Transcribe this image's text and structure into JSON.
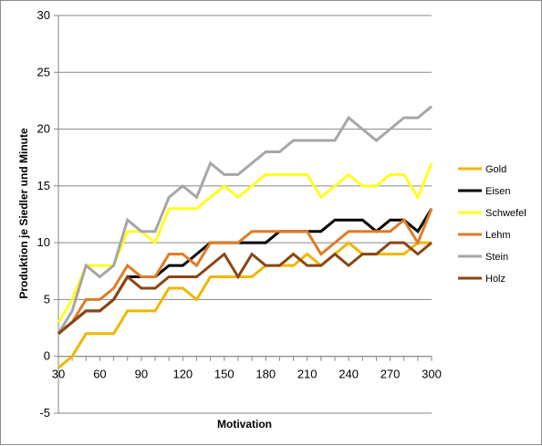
{
  "chart_data": {
    "type": "line",
    "title": "",
    "xlabel": "Motivation",
    "ylabel": "Produktion je Siedler und Minute",
    "xlim": [
      30,
      300
    ],
    "ylim": [
      -5,
      30
    ],
    "x_ticks": [
      "30",
      "60",
      "90",
      "120",
      "150",
      "180",
      "210",
      "240",
      "270",
      "300"
    ],
    "y_ticks": [
      "-5",
      "0",
      "5",
      "10",
      "15",
      "20",
      "25",
      "30"
    ],
    "grid": "horizontal",
    "legend_position": "right",
    "x": [
      30,
      40,
      50,
      60,
      70,
      80,
      90,
      100,
      110,
      120,
      130,
      140,
      150,
      160,
      170,
      180,
      190,
      200,
      210,
      220,
      230,
      240,
      250,
      260,
      270,
      280,
      290,
      300
    ],
    "series": [
      {
        "name": "Gold",
        "color": "#f2b600",
        "values": [
          -1,
          0,
          2,
          2,
          2,
          4,
          4,
          4,
          6,
          6,
          5,
          7,
          7,
          7,
          7,
          8,
          8,
          8,
          9,
          8,
          9,
          10,
          9,
          9,
          9,
          9,
          10,
          10
        ]
      },
      {
        "name": "Eisen",
        "color": "#000000",
        "values": [
          2,
          3,
          4,
          4,
          5,
          7,
          7,
          7,
          8,
          8,
          9,
          10,
          10,
          10,
          10,
          10,
          11,
          11,
          11,
          11,
          12,
          12,
          12,
          11,
          12,
          12,
          11,
          13
        ]
      },
      {
        "name": "Schwefel",
        "color": "#ffff1e",
        "values": [
          3,
          5,
          8,
          8,
          8,
          11,
          11,
          10,
          13,
          13,
          13,
          14,
          15,
          14,
          15,
          16,
          16,
          16,
          16,
          14,
          15,
          16,
          15,
          15,
          16,
          16,
          14,
          17
        ]
      },
      {
        "name": "Lehm",
        "color": "#e07b25",
        "values": [
          2,
          3,
          5,
          5,
          6,
          8,
          7,
          7,
          9,
          9,
          8,
          10,
          10,
          10,
          11,
          11,
          11,
          11,
          11,
          9,
          10,
          11,
          11,
          11,
          11,
          12,
          10,
          13
        ]
      },
      {
        "name": "Stein",
        "color": "#a6a6a6",
        "values": [
          2,
          4,
          8,
          7,
          8,
          12,
          11,
          11,
          14,
          15,
          14,
          17,
          16,
          16,
          17,
          18,
          18,
          19,
          19,
          19,
          19,
          21,
          20,
          19,
          20,
          21,
          21,
          22
        ]
      },
      {
        "name": "Holz",
        "color": "#8b4513",
        "values": [
          2,
          3,
          4,
          4,
          5,
          7,
          6,
          6,
          7,
          7,
          7,
          8,
          9,
          7,
          9,
          8,
          8,
          9,
          8,
          8,
          9,
          8,
          9,
          9,
          10,
          10,
          9,
          10
        ]
      }
    ]
  }
}
